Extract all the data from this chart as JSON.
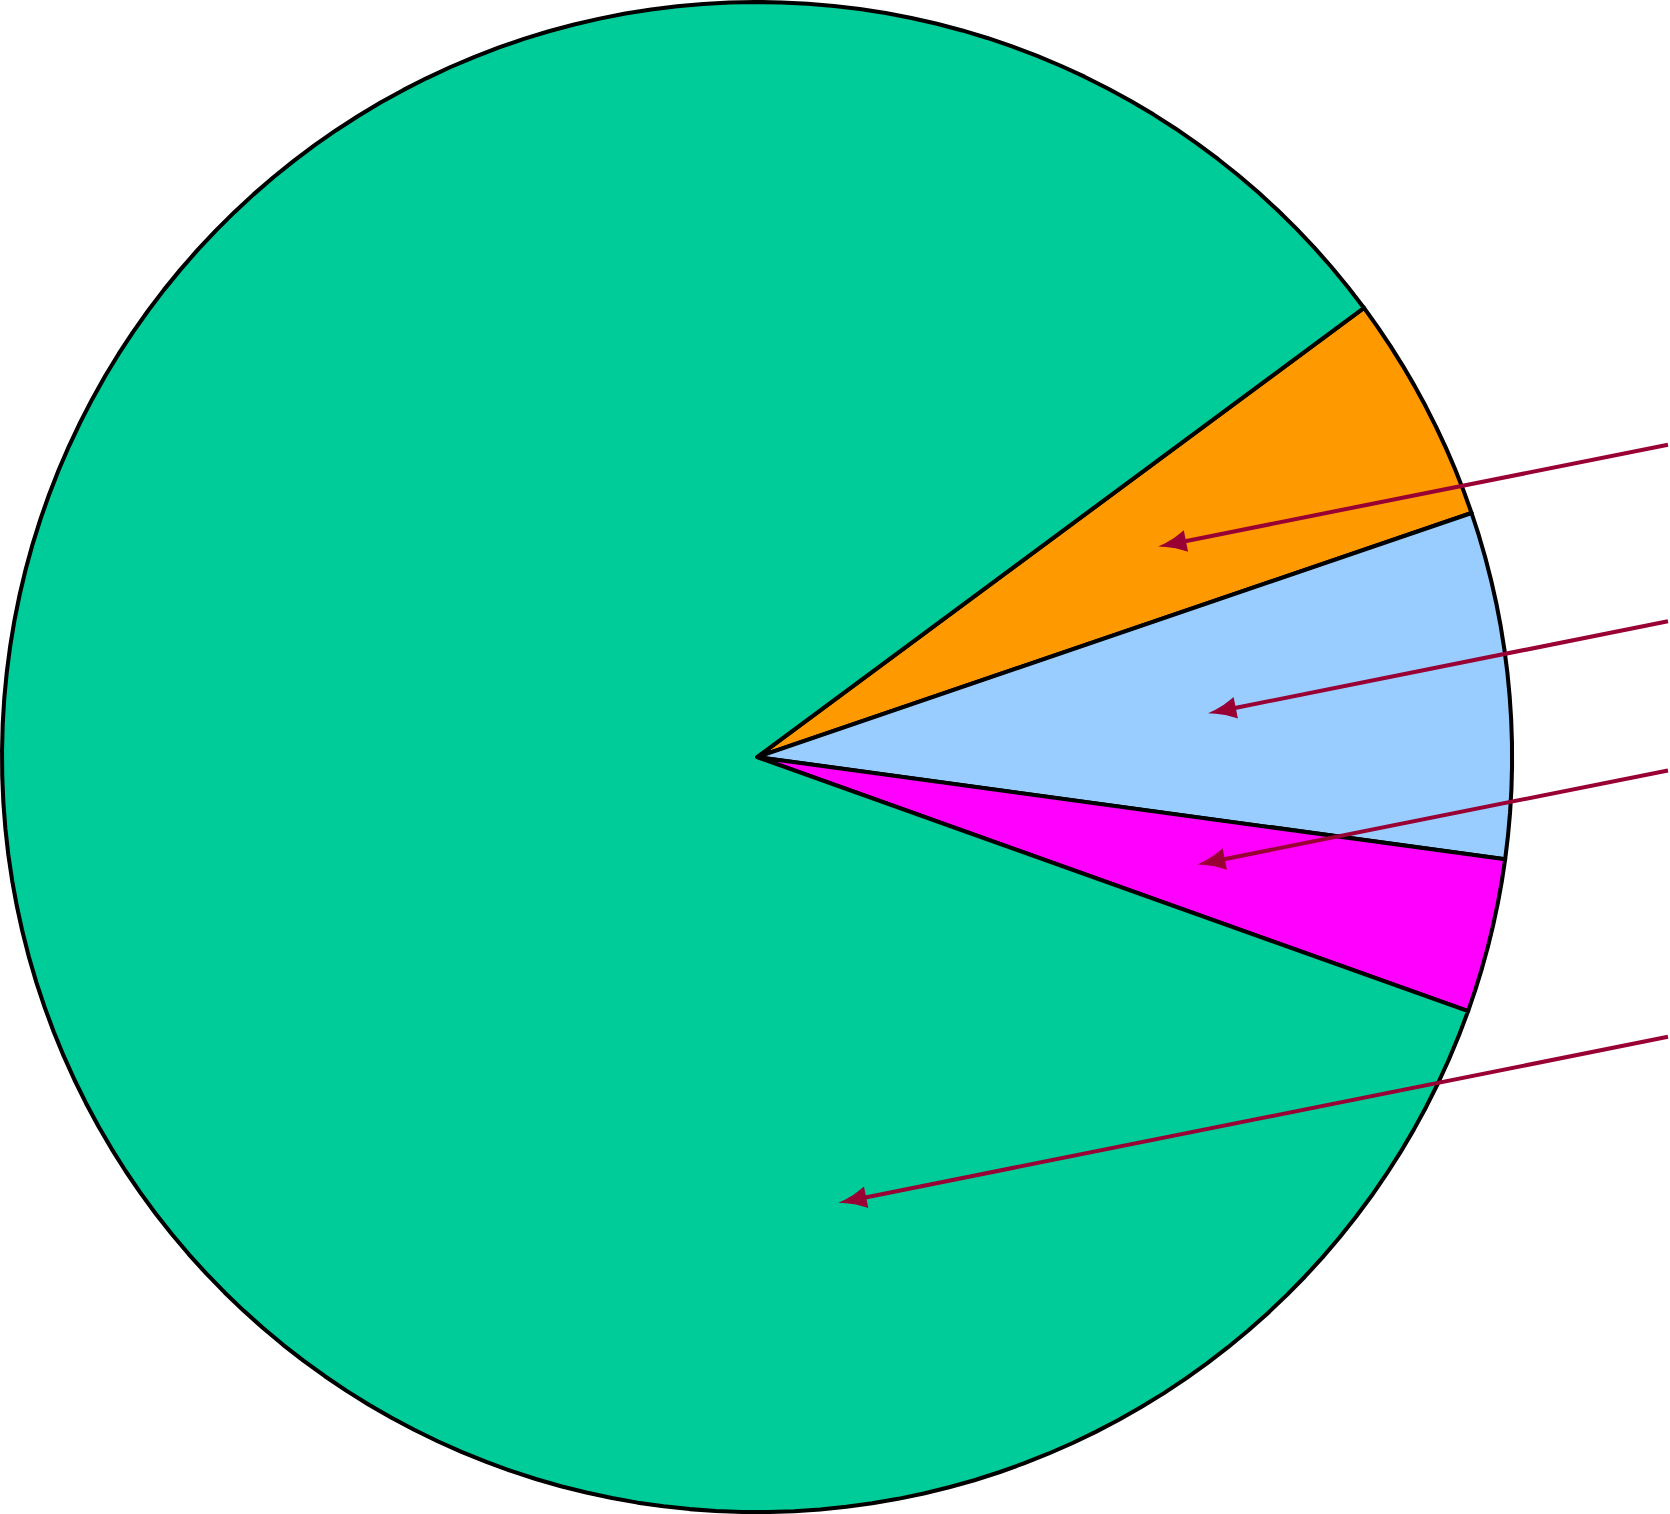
{
  "chart_data": {
    "type": "pie",
    "categories": [
      null,
      null,
      null,
      null
    ],
    "values": [
      4.9,
      7.4,
      3.3,
      84.4
    ],
    "colors": [
      "#ff9900",
      "#99ccff",
      "#ff00ff",
      "#00cc99"
    ]
  }
}
